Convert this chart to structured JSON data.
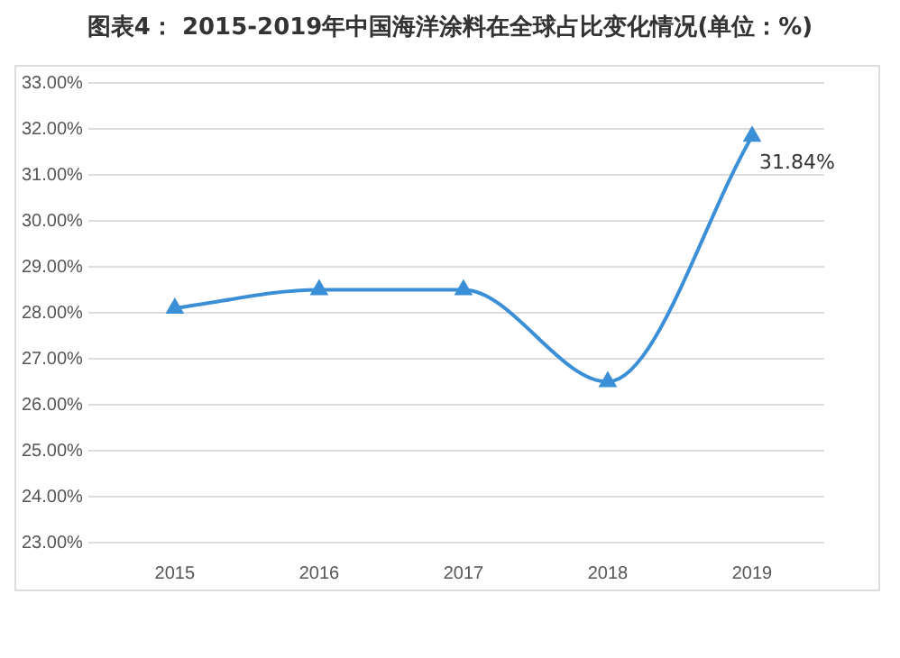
{
  "chart_data": {
    "type": "line",
    "title": "图表4： 2015-2019年中国海洋涂料在全球占比变化情况(单位：%)",
    "categories": [
      "2015",
      "2016",
      "2017",
      "2018",
      "2019"
    ],
    "series": [
      {
        "color": "#3a8fd6",
        "values": [
          28.1,
          28.5,
          28.5,
          26.5,
          31.84
        ],
        "value_labels": [
          null,
          null,
          null,
          null,
          "31.84%"
        ]
      }
    ],
    "ylim": [
      23,
      33
    ],
    "yticks": [
      {
        "value": 23,
        "label": "23.00%"
      },
      {
        "value": 24,
        "label": "24.00%"
      },
      {
        "value": 25,
        "label": "25.00%"
      },
      {
        "value": 26,
        "label": "26.00%"
      },
      {
        "value": 27,
        "label": "27.00%"
      },
      {
        "value": 28,
        "label": "28.00%"
      },
      {
        "value": 29,
        "label": "29.00%"
      },
      {
        "value": 30,
        "label": "30.00%"
      },
      {
        "value": 31,
        "label": "31.00%"
      },
      {
        "value": 32,
        "label": "32.00%"
      },
      {
        "value": 33,
        "label": "33.00%"
      }
    ],
    "grid": "y",
    "legend": false,
    "marker": "triangle",
    "line_style": "solid"
  }
}
